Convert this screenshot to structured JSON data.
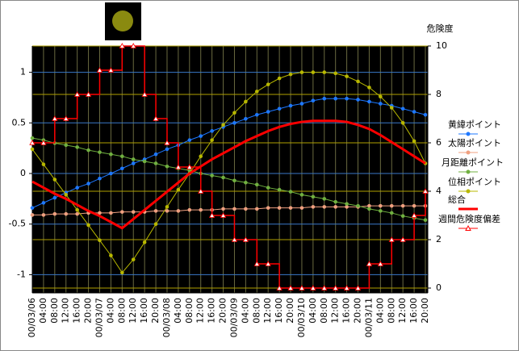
{
  "chart_data": {
    "type": "line",
    "y2_title": "危険度",
    "categories": [
      "00/03/06",
      "04:00",
      "08:00",
      "12:00",
      "16:00",
      "20:00",
      "00/03/07",
      "04:00",
      "08:00",
      "12:00",
      "16:00",
      "20:00",
      "00/03/08",
      "04:00",
      "08:00",
      "12:00",
      "16:00",
      "20:00",
      "00/03/09",
      "04:00",
      "08:00",
      "12:00",
      "16:00",
      "20:00",
      "00/03/10",
      "04:00",
      "08:00",
      "12:00",
      "16:00",
      "20:00",
      "00/03/11",
      "04:00",
      "08:00",
      "12:00",
      "16:00",
      "20:00"
    ],
    "ylim": [
      -1.18,
      1.26
    ],
    "yticks": [
      -1,
      -0.5,
      0,
      0.5,
      1
    ],
    "y2lim": [
      -0.2,
      10
    ],
    "y2ticks": [
      0,
      2,
      4,
      6,
      8,
      10
    ],
    "grid": true,
    "series": [
      {
        "name": "黄緯ポイント",
        "color": "#1e78ff",
        "marker": "circle",
        "axis": "y",
        "values": [
          -0.34,
          -0.29,
          -0.24,
          -0.19,
          -0.14,
          -0.1,
          -0.05,
          0.0,
          0.05,
          0.1,
          0.14,
          0.19,
          0.24,
          0.28,
          0.33,
          0.37,
          0.42,
          0.46,
          0.5,
          0.54,
          0.58,
          0.61,
          0.64,
          0.67,
          0.69,
          0.72,
          0.74,
          0.74,
          0.74,
          0.73,
          0.71,
          0.69,
          0.67,
          0.64,
          0.61,
          0.58
        ]
      },
      {
        "name": "太陽ポイント",
        "color": "#f0a080",
        "marker": "circle",
        "axis": "y",
        "values": [
          -0.41,
          -0.41,
          -0.4,
          -0.4,
          -0.4,
          -0.39,
          -0.39,
          -0.39,
          -0.38,
          -0.38,
          -0.38,
          -0.37,
          -0.37,
          -0.37,
          -0.36,
          -0.36,
          -0.36,
          -0.35,
          -0.35,
          -0.35,
          -0.35,
          -0.34,
          -0.34,
          -0.34,
          -0.34,
          -0.33,
          -0.33,
          -0.33,
          -0.33,
          -0.33,
          -0.32,
          -0.32,
          -0.32,
          -0.32,
          -0.32,
          -0.32
        ]
      },
      {
        "name": "月距離ポイント",
        "color": "#70b040",
        "marker": "circle",
        "axis": "y",
        "values": [
          0.35,
          0.33,
          0.3,
          0.28,
          0.26,
          0.23,
          0.21,
          0.19,
          0.17,
          0.14,
          0.12,
          0.1,
          0.07,
          0.05,
          0.03,
          0.0,
          -0.02,
          -0.04,
          -0.07,
          -0.09,
          -0.11,
          -0.14,
          -0.16,
          -0.18,
          -0.21,
          -0.23,
          -0.25,
          -0.28,
          -0.3,
          -0.32,
          -0.35,
          -0.37,
          -0.39,
          -0.42,
          -0.44,
          -0.46
        ]
      },
      {
        "name": "位相ポイント",
        "color": "#b8b800",
        "marker": "circle",
        "axis": "y",
        "values": [
          0.24,
          0.09,
          -0.06,
          -0.21,
          -0.36,
          -0.51,
          -0.66,
          -0.81,
          -0.98,
          -0.85,
          -0.68,
          -0.5,
          -0.33,
          -0.16,
          0.0,
          0.17,
          0.33,
          0.48,
          0.6,
          0.71,
          0.81,
          0.88,
          0.94,
          0.98,
          1.0,
          1.0,
          1.0,
          0.99,
          0.96,
          0.91,
          0.85,
          0.76,
          0.65,
          0.5,
          0.32,
          0.1
        ]
      },
      {
        "name": "総合",
        "color": "#ff0000",
        "marker": "none",
        "axis": "y",
        "values": [
          -0.08,
          -0.14,
          -0.2,
          -0.25,
          -0.31,
          -0.37,
          -0.42,
          -0.48,
          -0.54,
          -0.45,
          -0.36,
          -0.27,
          -0.18,
          -0.09,
          0.0,
          0.07,
          0.14,
          0.2,
          0.26,
          0.32,
          0.37,
          0.42,
          0.46,
          0.49,
          0.51,
          0.52,
          0.52,
          0.52,
          0.51,
          0.48,
          0.44,
          0.38,
          0.31,
          0.24,
          0.17,
          0.1
        ]
      },
      {
        "name": "週間危険度偏差",
        "color": "#ff0000",
        "marker": "triangle",
        "axis": "y2",
        "step": true,
        "values": [
          6,
          6,
          7,
          7,
          8,
          8,
          9,
          9,
          10,
          10,
          8,
          7,
          6,
          5,
          5,
          4,
          3,
          3,
          2,
          2,
          1,
          1,
          0,
          0,
          0,
          0,
          0,
          0,
          0,
          0,
          1,
          1,
          2,
          2,
          3,
          4
        ]
      }
    ]
  }
}
